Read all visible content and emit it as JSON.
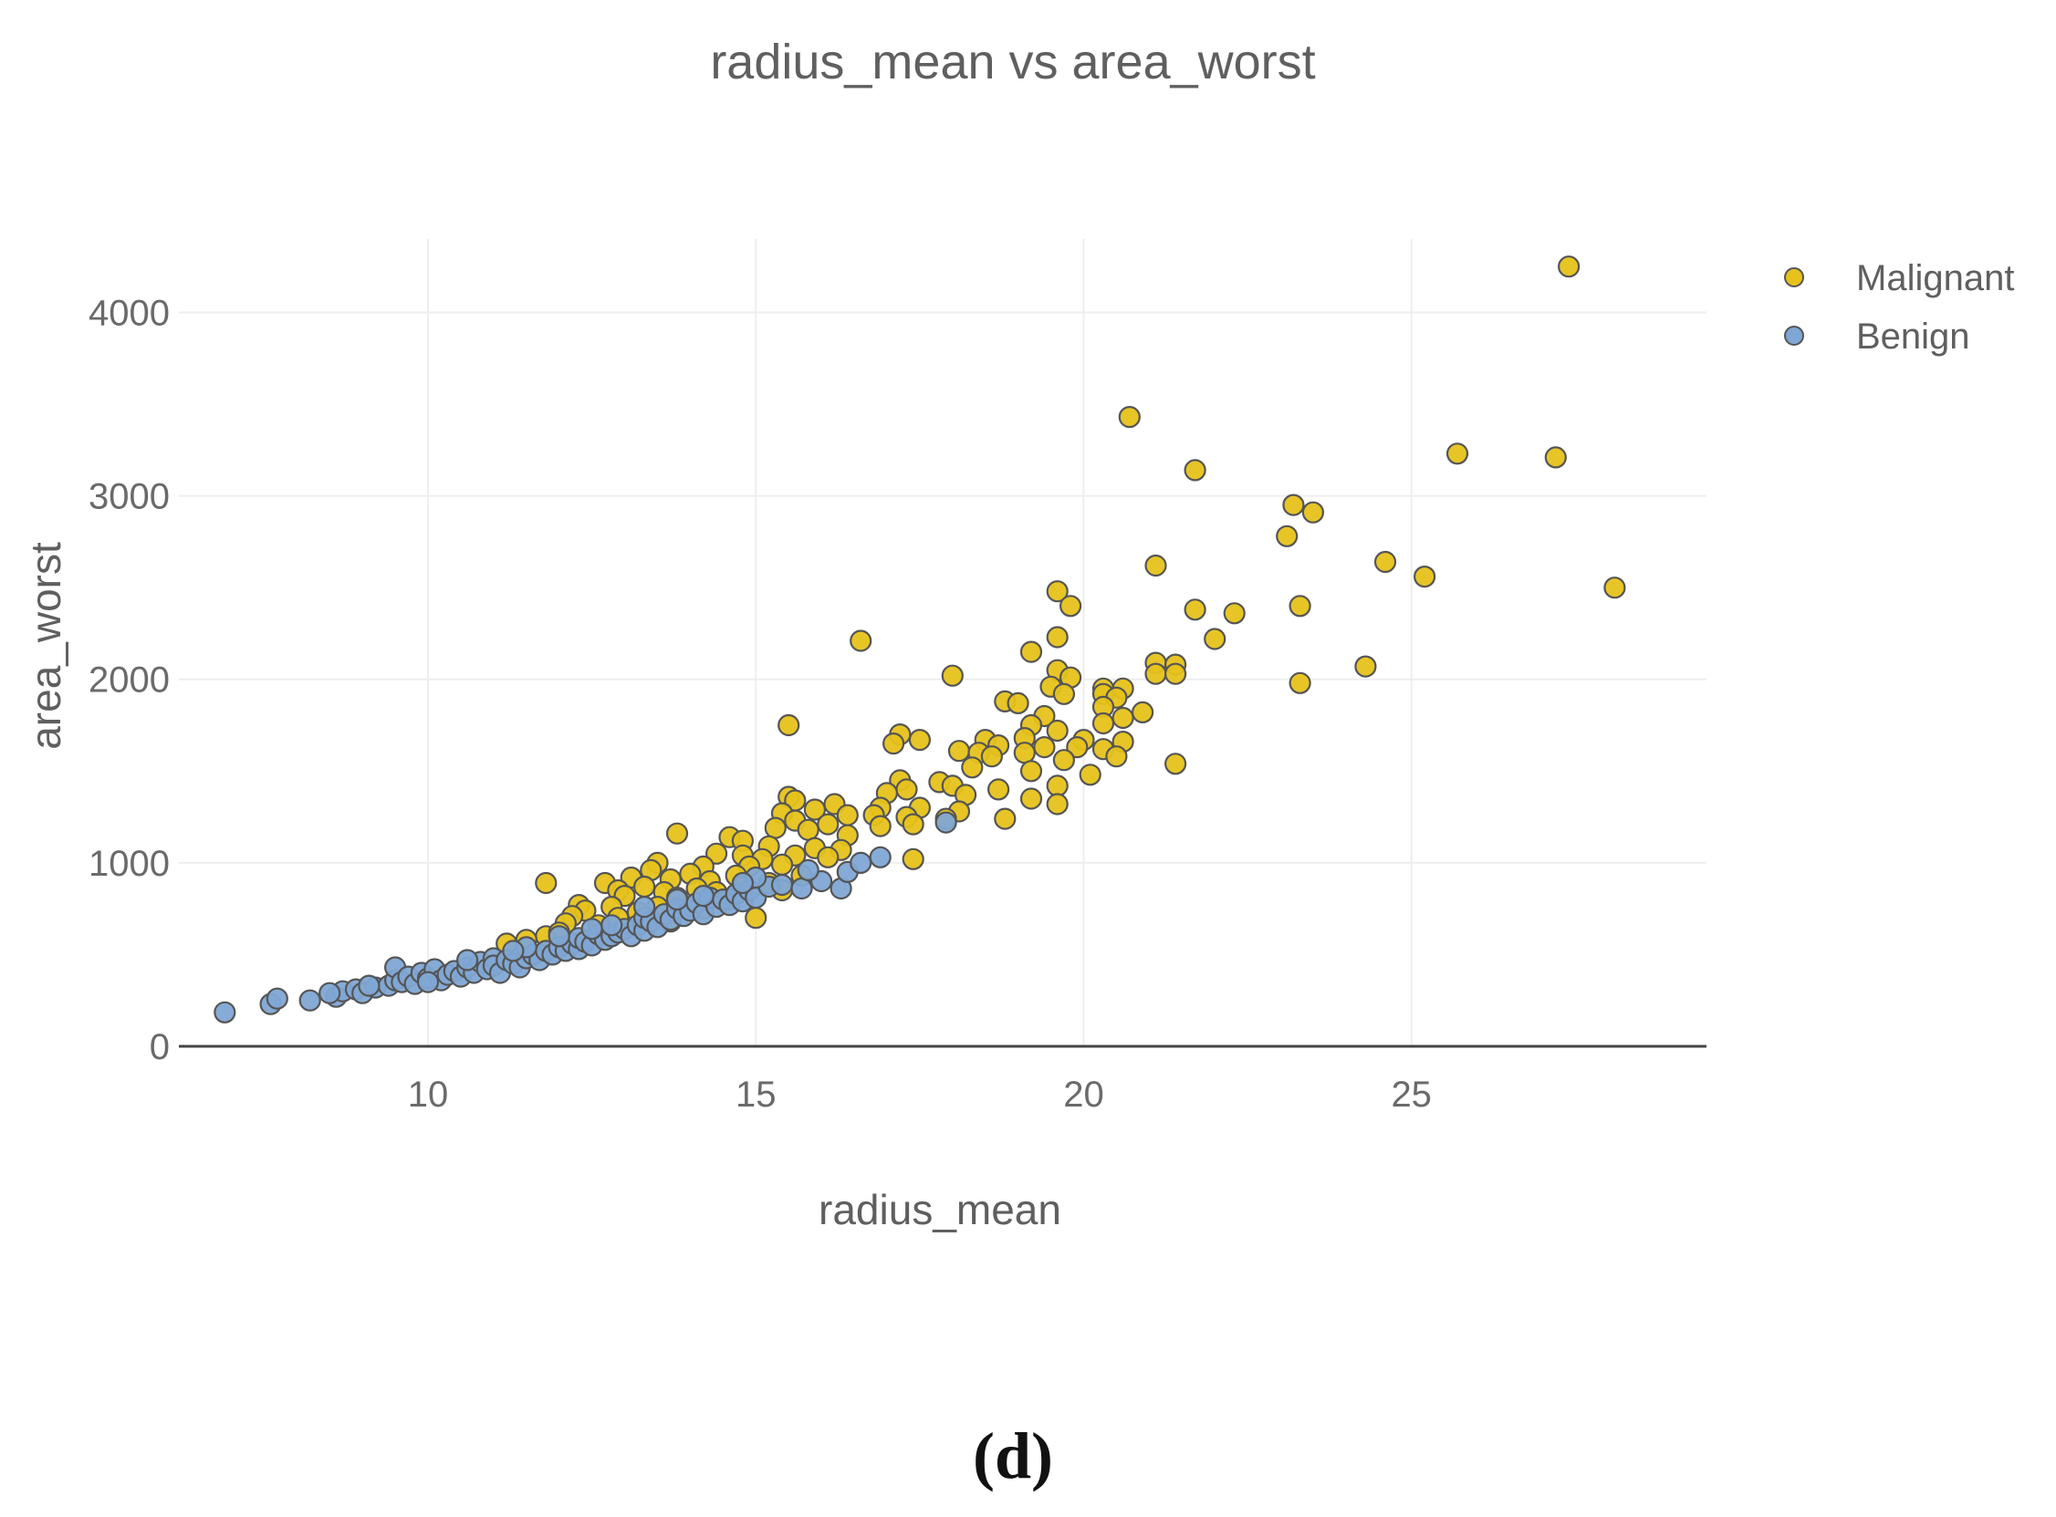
{
  "chart_data": {
    "type": "scatter",
    "title": "radius_mean vs area_worst",
    "xlabel": "radius_mean",
    "ylabel": "area_worst",
    "xlim": [
      6.2,
      29.5
    ],
    "ylim": [
      0,
      4400
    ],
    "xticks": [
      10,
      15,
      20,
      25
    ],
    "yticks": [
      0,
      1000,
      2000,
      3000,
      4000
    ],
    "grid": true,
    "legend_position": "top-right",
    "series": [
      {
        "name": "Malignant",
        "color": "#e6c21a",
        "points": [
          [
            27.4,
            4250
          ],
          [
            20.7,
            3430
          ],
          [
            21.7,
            3140
          ],
          [
            25.7,
            3230
          ],
          [
            27.2,
            3210
          ],
          [
            23.2,
            2950
          ],
          [
            23.5,
            2910
          ],
          [
            23.1,
            2780
          ],
          [
            21.1,
            2620
          ],
          [
            24.6,
            2640
          ],
          [
            25.2,
            2560
          ],
          [
            28.1,
            2500
          ],
          [
            19.6,
            2480
          ],
          [
            19.8,
            2400
          ],
          [
            23.3,
            2400
          ],
          [
            21.7,
            2380
          ],
          [
            22.3,
            2360
          ],
          [
            16.6,
            2210
          ],
          [
            19.6,
            2230
          ],
          [
            22.0,
            2220
          ],
          [
            19.2,
            2150
          ],
          [
            21.1,
            2090
          ],
          [
            21.4,
            2080
          ],
          [
            24.3,
            2070
          ],
          [
            18.0,
            2020
          ],
          [
            19.6,
            2050
          ],
          [
            19.8,
            2010
          ],
          [
            21.1,
            2030
          ],
          [
            21.4,
            2030
          ],
          [
            23.3,
            1980
          ],
          [
            19.5,
            1960
          ],
          [
            20.3,
            1950
          ],
          [
            20.6,
            1950
          ],
          [
            20.3,
            1920
          ],
          [
            19.7,
            1920
          ],
          [
            20.5,
            1900
          ],
          [
            20.9,
            1820
          ],
          [
            18.8,
            1880
          ],
          [
            19.0,
            1870
          ],
          [
            20.3,
            1850
          ],
          [
            20.6,
            1790
          ],
          [
            19.4,
            1800
          ],
          [
            19.2,
            1750
          ],
          [
            20.3,
            1760
          ],
          [
            15.5,
            1750
          ],
          [
            17.2,
            1700
          ],
          [
            17.5,
            1670
          ],
          [
            17.1,
            1650
          ],
          [
            18.5,
            1670
          ],
          [
            19.1,
            1680
          ],
          [
            19.6,
            1720
          ],
          [
            20.0,
            1670
          ],
          [
            20.6,
            1660
          ],
          [
            18.7,
            1640
          ],
          [
            19.4,
            1630
          ],
          [
            19.9,
            1630
          ],
          [
            20.3,
            1620
          ],
          [
            18.1,
            1610
          ],
          [
            18.4,
            1600
          ],
          [
            19.1,
            1600
          ],
          [
            20.5,
            1580
          ],
          [
            19.7,
            1560
          ],
          [
            18.6,
            1580
          ],
          [
            21.4,
            1540
          ],
          [
            18.3,
            1520
          ],
          [
            19.2,
            1500
          ],
          [
            20.1,
            1480
          ],
          [
            17.2,
            1450
          ],
          [
            17.8,
            1440
          ],
          [
            18.0,
            1420
          ],
          [
            18.7,
            1400
          ],
          [
            19.6,
            1420
          ],
          [
            17.3,
            1400
          ],
          [
            17.0,
            1380
          ],
          [
            18.2,
            1370
          ],
          [
            19.2,
            1350
          ],
          [
            19.6,
            1320
          ],
          [
            15.5,
            1360
          ],
          [
            15.6,
            1340
          ],
          [
            16.2,
            1320
          ],
          [
            16.9,
            1300
          ],
          [
            17.5,
            1300
          ],
          [
            18.1,
            1280
          ],
          [
            15.9,
            1290
          ],
          [
            15.4,
            1270
          ],
          [
            16.4,
            1260
          ],
          [
            16.8,
            1260
          ],
          [
            17.3,
            1250
          ],
          [
            17.9,
            1240
          ],
          [
            18.8,
            1240
          ],
          [
            15.6,
            1230
          ],
          [
            16.1,
            1210
          ],
          [
            16.9,
            1200
          ],
          [
            17.4,
            1210
          ],
          [
            15.3,
            1190
          ],
          [
            15.8,
            1180
          ],
          [
            13.8,
            1160
          ],
          [
            16.4,
            1150
          ],
          [
            14.6,
            1140
          ],
          [
            14.8,
            1120
          ],
          [
            15.2,
            1090
          ],
          [
            15.9,
            1080
          ],
          [
            16.3,
            1070
          ],
          [
            14.4,
            1050
          ],
          [
            14.8,
            1040
          ],
          [
            15.6,
            1040
          ],
          [
            16.1,
            1030
          ],
          [
            15.1,
            1020
          ],
          [
            17.4,
            1020
          ],
          [
            13.5,
            1000
          ],
          [
            14.2,
            980
          ],
          [
            14.9,
            980
          ],
          [
            15.4,
            990
          ],
          [
            13.4,
            960
          ],
          [
            14.0,
            940
          ],
          [
            14.7,
            930
          ],
          [
            15.7,
            930
          ],
          [
            13.1,
            920
          ],
          [
            13.7,
            910
          ],
          [
            14.3,
            900
          ],
          [
            15.2,
            890
          ],
          [
            11.8,
            890
          ],
          [
            12.7,
            890
          ],
          [
            13.3,
            870
          ],
          [
            14.1,
            860
          ],
          [
            14.8,
            870
          ],
          [
            12.9,
            850
          ],
          [
            13.6,
            840
          ],
          [
            14.4,
            840
          ],
          [
            15.4,
            850
          ],
          [
            13.0,
            820
          ],
          [
            13.8,
            810
          ],
          [
            14.6,
            800
          ],
          [
            12.3,
            770
          ],
          [
            12.8,
            760
          ],
          [
            13.5,
            760
          ],
          [
            14.2,
            750
          ],
          [
            15.0,
            700
          ],
          [
            12.4,
            740
          ],
          [
            13.2,
            730
          ],
          [
            12.2,
            710
          ],
          [
            12.9,
            700
          ],
          [
            12.1,
            670
          ],
          [
            12.6,
            660
          ],
          [
            11.8,
            600
          ],
          [
            11.5,
            580
          ],
          [
            11.2,
            560
          ],
          [
            12.0,
            620
          ],
          [
            13.7,
            680
          ]
        ]
      },
      {
        "name": "Benign",
        "color": "#7fa6d4",
        "points": [
          [
            6.9,
            185
          ],
          [
            7.6,
            230
          ],
          [
            7.7,
            260
          ],
          [
            8.2,
            250
          ],
          [
            8.6,
            270
          ],
          [
            8.7,
            300
          ],
          [
            8.9,
            310
          ],
          [
            9.0,
            290
          ],
          [
            9.2,
            320
          ],
          [
            9.4,
            330
          ],
          [
            9.5,
            360
          ],
          [
            9.5,
            430
          ],
          [
            9.6,
            350
          ],
          [
            9.7,
            380
          ],
          [
            9.8,
            340
          ],
          [
            9.9,
            400
          ],
          [
            10.0,
            370
          ],
          [
            10.1,
            420
          ],
          [
            10.2,
            360
          ],
          [
            10.3,
            390
          ],
          [
            10.4,
            410
          ],
          [
            10.5,
            380
          ],
          [
            10.6,
            430
          ],
          [
            10.7,
            400
          ],
          [
            10.8,
            460
          ],
          [
            10.9,
            420
          ],
          [
            11.0,
            480
          ],
          [
            11.0,
            440
          ],
          [
            11.1,
            400
          ],
          [
            11.2,
            470
          ],
          [
            11.3,
            450
          ],
          [
            11.4,
            430
          ],
          [
            11.5,
            480
          ],
          [
            11.6,
            500
          ],
          [
            11.7,
            470
          ],
          [
            11.8,
            520
          ],
          [
            11.9,
            500
          ],
          [
            12.0,
            540
          ],
          [
            12.1,
            520
          ],
          [
            12.2,
            560
          ],
          [
            12.3,
            530
          ],
          [
            12.3,
            590
          ],
          [
            12.4,
            570
          ],
          [
            12.5,
            550
          ],
          [
            12.6,
            610
          ],
          [
            12.7,
            580
          ],
          [
            12.8,
            600
          ],
          [
            12.9,
            620
          ],
          [
            13.0,
            640
          ],
          [
            13.1,
            600
          ],
          [
            13.2,
            660
          ],
          [
            13.3,
            630
          ],
          [
            13.3,
            700
          ],
          [
            13.4,
            680
          ],
          [
            13.5,
            650
          ],
          [
            13.6,
            720
          ],
          [
            13.7,
            690
          ],
          [
            13.8,
            750
          ],
          [
            13.9,
            710
          ],
          [
            14.0,
            740
          ],
          [
            14.1,
            780
          ],
          [
            14.2,
            720
          ],
          [
            14.3,
            810
          ],
          [
            14.4,
            760
          ],
          [
            14.5,
            800
          ],
          [
            14.6,
            770
          ],
          [
            14.7,
            830
          ],
          [
            14.8,
            790
          ],
          [
            14.9,
            850
          ],
          [
            15.0,
            810
          ],
          [
            15.2,
            870
          ],
          [
            15.4,
            880
          ],
          [
            15.7,
            860
          ],
          [
            16.0,
            900
          ],
          [
            16.3,
            860
          ],
          [
            16.4,
            950
          ],
          [
            16.6,
            1000
          ],
          [
            16.9,
            1030
          ],
          [
            17.9,
            1220
          ],
          [
            11.5,
            540
          ],
          [
            12.0,
            600
          ],
          [
            12.8,
            660
          ],
          [
            13.3,
            760
          ],
          [
            14.2,
            820
          ],
          [
            15.0,
            920
          ],
          [
            10.6,
            470
          ],
          [
            9.1,
            330
          ],
          [
            8.5,
            290
          ],
          [
            10.0,
            350
          ],
          [
            11.3,
            520
          ],
          [
            12.5,
            640
          ],
          [
            13.8,
            800
          ],
          [
            14.8,
            890
          ],
          [
            15.8,
            960
          ]
        ]
      }
    ]
  },
  "caption": "(d)"
}
